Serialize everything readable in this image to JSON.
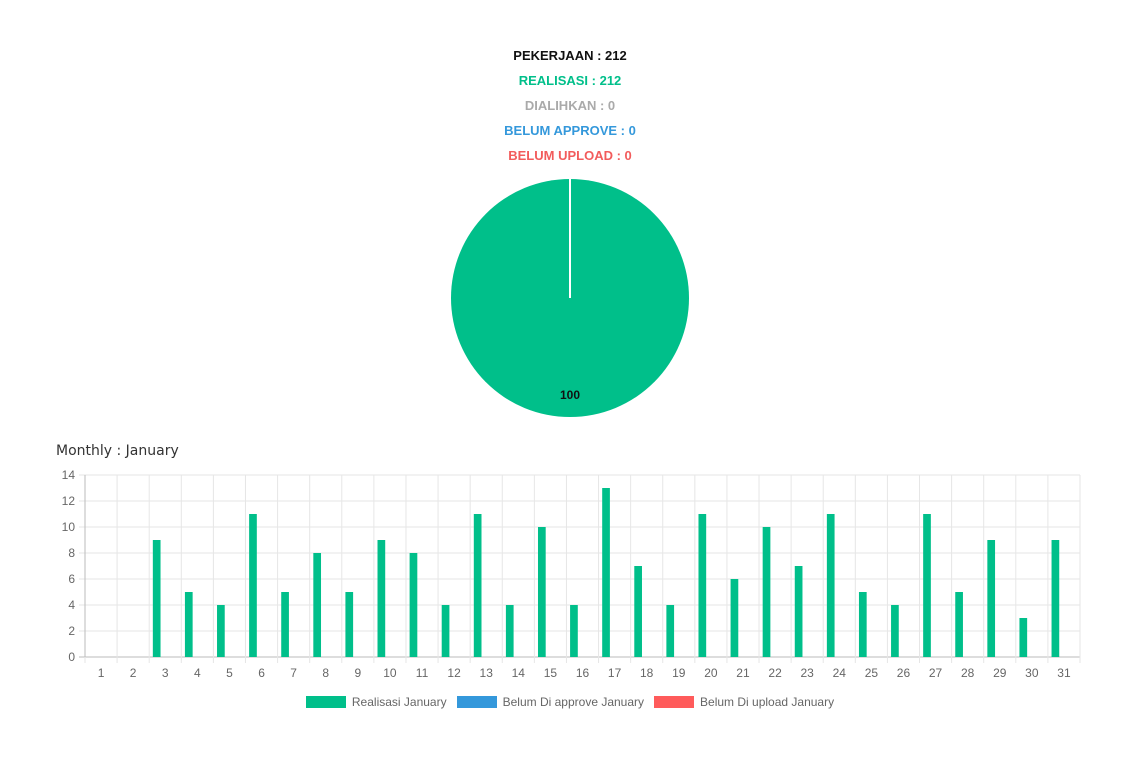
{
  "summary": {
    "pekerjaan": "PEKERJAAN : 212",
    "realisasi": "REALISASI : 212",
    "dialihkan": "DIALIHKAN : 0",
    "belum_approve": "BELUM APPROVE : 0",
    "belum_upload": "BELUM UPLOAD : 0"
  },
  "colors": {
    "pekerjaan": "#111111",
    "realisasi": "#00BF8A",
    "dialihkan": "#AAAAAA",
    "belum_approve": "#3498DB",
    "belum_upload": "#F25C5C"
  },
  "monthly": {
    "title": "Monthly : January"
  },
  "chart_data": [
    {
      "type": "pie",
      "slices": [
        {
          "value": 100,
          "label": "100",
          "color": "#00BF8A"
        }
      ]
    },
    {
      "type": "bar",
      "categories": [
        "1",
        "2",
        "3",
        "4",
        "5",
        "6",
        "7",
        "8",
        "9",
        "10",
        "11",
        "12",
        "13",
        "14",
        "15",
        "16",
        "17",
        "18",
        "19",
        "20",
        "21",
        "22",
        "23",
        "24",
        "25",
        "26",
        "27",
        "28",
        "29",
        "30",
        "31"
      ],
      "series": [
        {
          "name": "Realisasi January",
          "color": "#00BF8A",
          "values": [
            0,
            0,
            9,
            5,
            4,
            11,
            5,
            8,
            5,
            9,
            8,
            4,
            11,
            4,
            10,
            4,
            13,
            7,
            4,
            11,
            6,
            10,
            7,
            11,
            5,
            4,
            11,
            5,
            9,
            3,
            9
          ]
        },
        {
          "name": "Belum Di approve January",
          "color": "#3498DB",
          "values": [
            0,
            0,
            0,
            0,
            0,
            0,
            0,
            0,
            0,
            0,
            0,
            0,
            0,
            0,
            0,
            0,
            0,
            0,
            0,
            0,
            0,
            0,
            0,
            0,
            0,
            0,
            0,
            0,
            0,
            0,
            0
          ]
        },
        {
          "name": "Belum Di upload January",
          "color": "#FF5B5B",
          "values": [
            0,
            0,
            0,
            0,
            0,
            0,
            0,
            0,
            0,
            0,
            0,
            0,
            0,
            0,
            0,
            0,
            0,
            0,
            0,
            0,
            0,
            0,
            0,
            0,
            0,
            0,
            0,
            0,
            0,
            0,
            0
          ]
        }
      ],
      "ylim": [
        0,
        14
      ],
      "yticks": [
        0,
        2,
        4,
        6,
        8,
        10,
        12,
        14
      ],
      "grid": true,
      "legend": "bottom"
    }
  ]
}
